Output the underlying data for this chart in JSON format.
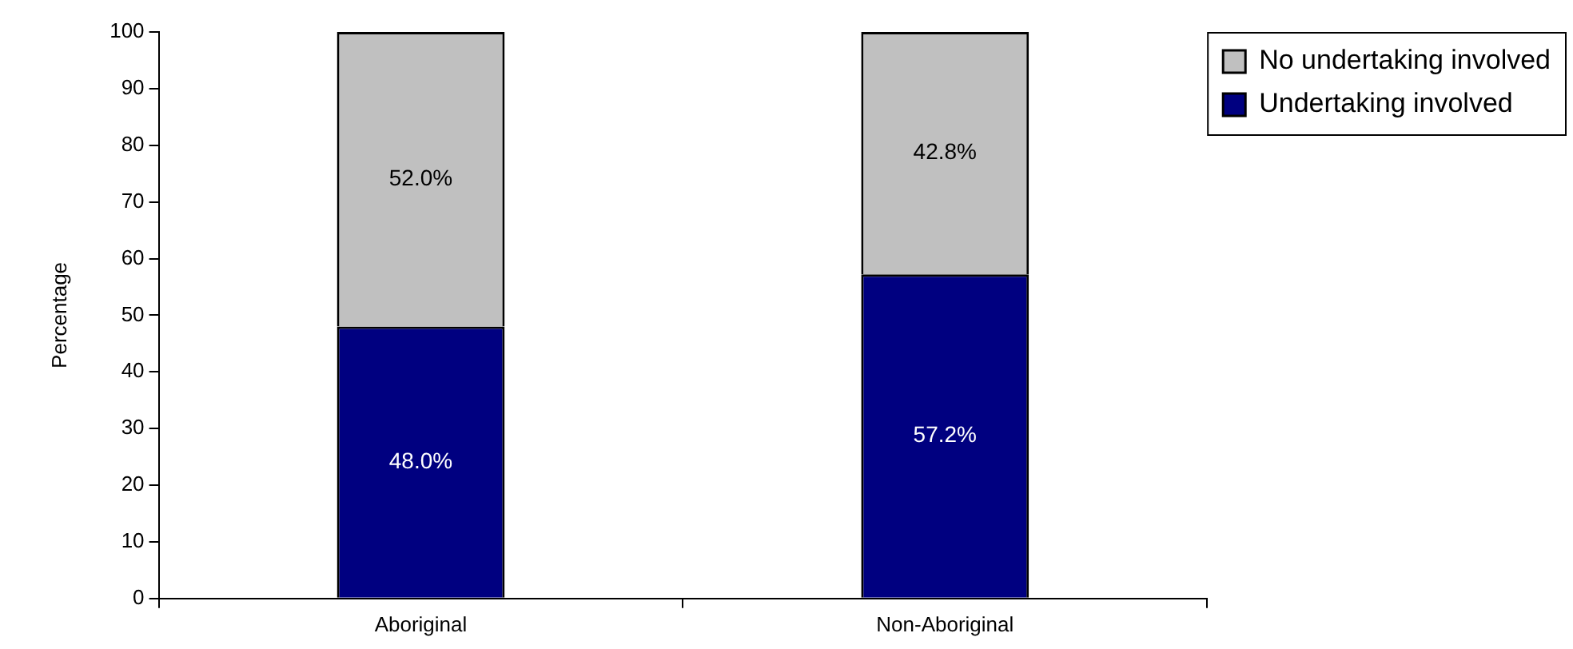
{
  "chart_data": {
    "type": "bar",
    "stacked": true,
    "ylabel": "Percentage",
    "categories": [
      "Aboriginal",
      "Non-Aboriginal"
    ],
    "series": [
      {
        "name": "Undertaking involved",
        "color": "#000080",
        "values": [
          48.0,
          57.2
        ],
        "value_labels": [
          "48.0%",
          "57.2%"
        ]
      },
      {
        "name": "No undertaking involved",
        "color": "#c0c0c0",
        "values": [
          52.0,
          42.8
        ],
        "value_labels": [
          "52.0%",
          "42.8%"
        ]
      }
    ],
    "ylim": [
      0,
      100
    ],
    "yticks": [
      0,
      10,
      20,
      30,
      40,
      50,
      60,
      70,
      80,
      90,
      100
    ],
    "legend": "top right"
  }
}
